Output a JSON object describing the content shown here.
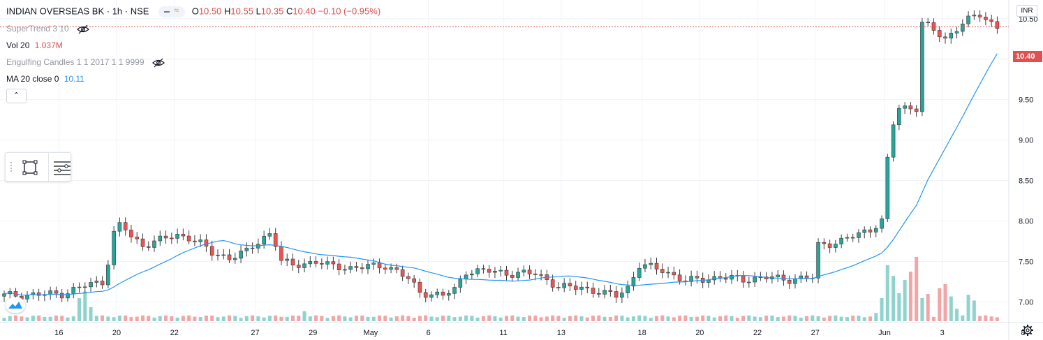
{
  "header": {
    "symbol": "INDIAN OVERSEAS BK · 1h · NSE",
    "ohlc": {
      "o_label": "O",
      "o": "10.50",
      "h_label": "H",
      "h": "10.55",
      "l_label": "L",
      "l": "10.35",
      "c_label": "C",
      "c": "10.40",
      "change": "−0.10 (−0.95%)"
    }
  },
  "indicators": {
    "supertrend": "SuperTrend 3 10",
    "vol_label": "Vol 20",
    "vol_value": "1.037M",
    "engulfing": "Engulfing Candles 1 1 2017 1 1 9999",
    "ma_label": "MA 20 close 0",
    "ma_value": "10.11"
  },
  "price_axis": {
    "currency": "INR",
    "last_price_label": "10.40"
  },
  "colors": {
    "up": "#26a69a",
    "down": "#ef5350",
    "ma": "#2196f3",
    "price_line": "#e05050",
    "up_vol": "#8fd3cd",
    "down_vol": "#f2a5a5"
  },
  "icons": {
    "hide": "eye-off-icon",
    "collapse": "chevron-up-icon",
    "select": "select-frame-icon",
    "lines": "settings-lines-icon",
    "logo": "tradingview-logo-icon",
    "settings": "gear-icon"
  },
  "chart_data": {
    "type": "candlestick",
    "title": "INDIAN OVERSEAS BK",
    "ylim": [
      6.65,
      11.05
    ],
    "y_ticks": [
      "7.00",
      "7.50",
      "8.00",
      "8.50",
      "9.00",
      "9.50",
      "10.00",
      "10.50",
      "11.00"
    ],
    "x_tick_labels": [
      "16",
      "20",
      "22",
      "27",
      "29",
      "May",
      "6",
      "11",
      "13",
      "18",
      "20",
      "22",
      "27",
      "Jun",
      "3",
      "8"
    ],
    "waypoints": [
      [
        0,
        7.08
      ],
      [
        10,
        7.1
      ],
      [
        14,
        7.2
      ],
      [
        17,
        7.25
      ],
      [
        18,
        7.5
      ],
      [
        19,
        7.85
      ],
      [
        20,
        7.95
      ],
      [
        21,
        7.9
      ],
      [
        22,
        7.8
      ],
      [
        24,
        7.7
      ],
      [
        26,
        7.75
      ],
      [
        30,
        7.82
      ],
      [
        32,
        7.8
      ],
      [
        34,
        7.72
      ],
      [
        36,
        7.6
      ],
      [
        39,
        7.55
      ],
      [
        42,
        7.62
      ],
      [
        45,
        7.8
      ],
      [
        46,
        7.85
      ],
      [
        47,
        7.72
      ],
      [
        48,
        7.5
      ],
      [
        50,
        7.45
      ],
      [
        54,
        7.5
      ],
      [
        56,
        7.45
      ],
      [
        60,
        7.42
      ],
      [
        66,
        7.45
      ],
      [
        68,
        7.38
      ],
      [
        70,
        7.28
      ],
      [
        72,
        7.12
      ],
      [
        76,
        7.08
      ],
      [
        78,
        7.15
      ],
      [
        80,
        7.38
      ],
      [
        84,
        7.38
      ],
      [
        88,
        7.35
      ],
      [
        92,
        7.35
      ],
      [
        94,
        7.28
      ],
      [
        96,
        7.18
      ],
      [
        100,
        7.18
      ],
      [
        104,
        7.1
      ],
      [
        106,
        7.08
      ],
      [
        108,
        7.18
      ],
      [
        110,
        7.45
      ],
      [
        114,
        7.4
      ],
      [
        118,
        7.25
      ],
      [
        120,
        7.28
      ],
      [
        124,
        7.3
      ],
      [
        128,
        7.28
      ],
      [
        132,
        7.3
      ],
      [
        136,
        7.28
      ],
      [
        140,
        7.3
      ],
      [
        141,
        7.7
      ],
      [
        145,
        7.75
      ],
      [
        150,
        7.9
      ],
      [
        152,
        8.0
      ],
      [
        153,
        8.75
      ],
      [
        154,
        9.2
      ],
      [
        155,
        9.4
      ],
      [
        158,
        9.4
      ],
      [
        159,
        10.45
      ],
      [
        163,
        10.25
      ],
      [
        166,
        10.45
      ],
      [
        169,
        10.55
      ],
      [
        172,
        10.4
      ]
    ],
    "volume_peaks": [
      [
        13,
        0.28
      ],
      [
        14,
        0.36
      ],
      [
        15,
        0.17
      ],
      [
        52,
        0.12
      ],
      [
        151,
        0.1
      ],
      [
        152,
        0.28
      ],
      [
        153,
        0.68
      ],
      [
        154,
        0.55
      ],
      [
        155,
        0.34
      ],
      [
        156,
        0.5
      ],
      [
        157,
        0.6
      ],
      [
        158,
        0.78
      ],
      [
        159,
        0.28
      ],
      [
        160,
        0.33
      ],
      [
        162,
        0.4
      ],
      [
        163,
        0.45
      ],
      [
        164,
        0.3
      ],
      [
        165,
        0.15
      ],
      [
        167,
        0.32
      ],
      [
        168,
        0.25
      ]
    ],
    "ma_period": 20
  }
}
